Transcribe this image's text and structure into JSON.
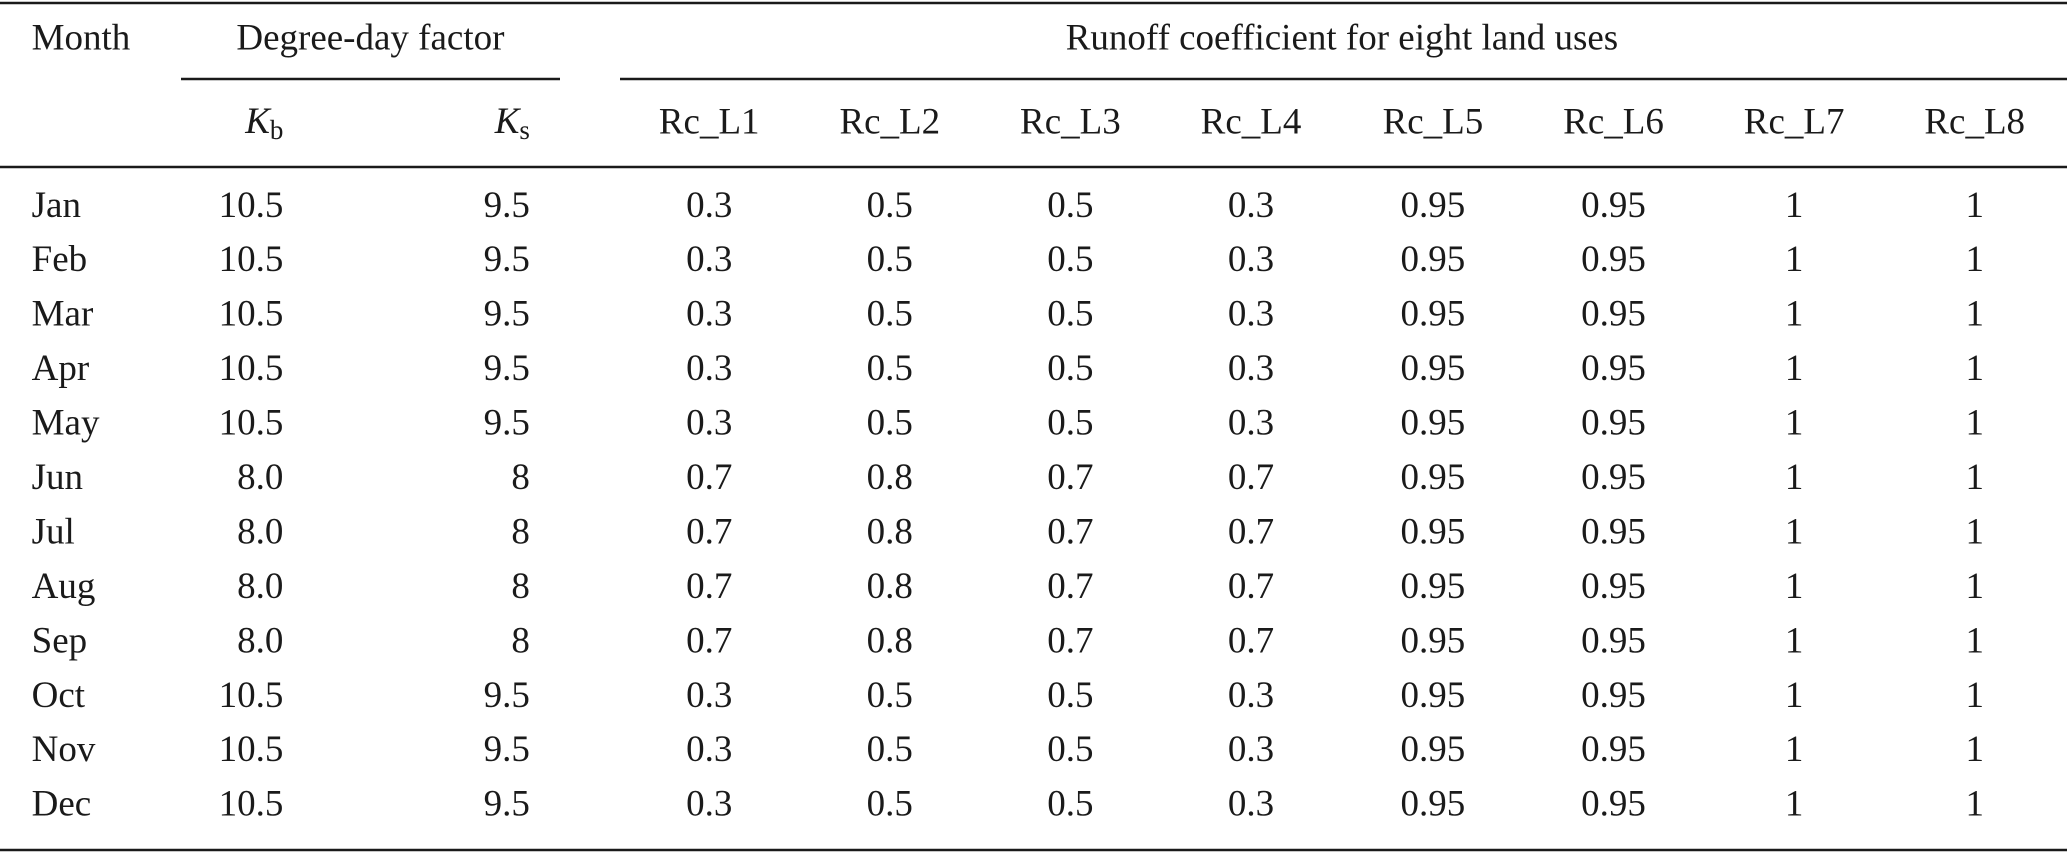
{
  "table": {
    "group_headers": [
      "Month",
      "Degree-day factor",
      "Runoff coefficient for eight land uses"
    ],
    "sub_headers": [
      {
        "symbol": "K",
        "sub": "b"
      },
      {
        "symbol": "K",
        "sub": "s"
      },
      "Rc_L1",
      "Rc_L2",
      "Rc_L3",
      "Rc_L4",
      "Rc_L5",
      "Rc_L6",
      "Rc_L7",
      "Rc_L8"
    ],
    "rows": [
      [
        "Jan",
        "10.5",
        "9.5",
        "0.3",
        "0.5",
        "0.5",
        "0.3",
        "0.95",
        "0.95",
        "1",
        "1"
      ],
      [
        "Feb",
        "10.5",
        "9.5",
        "0.3",
        "0.5",
        "0.5",
        "0.3",
        "0.95",
        "0.95",
        "1",
        "1"
      ],
      [
        "Mar",
        "10.5",
        "9.5",
        "0.3",
        "0.5",
        "0.5",
        "0.3",
        "0.95",
        "0.95",
        "1",
        "1"
      ],
      [
        "Apr",
        "10.5",
        "9.5",
        "0.3",
        "0.5",
        "0.5",
        "0.3",
        "0.95",
        "0.95",
        "1",
        "1"
      ],
      [
        "May",
        "10.5",
        "9.5",
        "0.3",
        "0.5",
        "0.5",
        "0.3",
        "0.95",
        "0.95",
        "1",
        "1"
      ],
      [
        "Jun",
        "8.0",
        "8",
        "0.7",
        "0.8",
        "0.7",
        "0.7",
        "0.95",
        "0.95",
        "1",
        "1"
      ],
      [
        "Jul",
        "8.0",
        "8",
        "0.7",
        "0.8",
        "0.7",
        "0.7",
        "0.95",
        "0.95",
        "1",
        "1"
      ],
      [
        "Aug",
        "8.0",
        "8",
        "0.7",
        "0.8",
        "0.7",
        "0.7",
        "0.95",
        "0.95",
        "1",
        "1"
      ],
      [
        "Sep",
        "8.0",
        "8",
        "0.7",
        "0.8",
        "0.7",
        "0.7",
        "0.95",
        "0.95",
        "1",
        "1"
      ],
      [
        "Oct",
        "10.5",
        "9.5",
        "0.3",
        "0.5",
        "0.5",
        "0.3",
        "0.95",
        "0.95",
        "1",
        "1"
      ],
      [
        "Nov",
        "10.5",
        "9.5",
        "0.3",
        "0.5",
        "0.5",
        "0.3",
        "0.95",
        "0.95",
        "1",
        "1"
      ],
      [
        "Dec",
        "10.5",
        "9.5",
        "0.3",
        "0.5",
        "0.5",
        "0.3",
        "0.95",
        "0.95",
        "1",
        "1"
      ]
    ]
  }
}
